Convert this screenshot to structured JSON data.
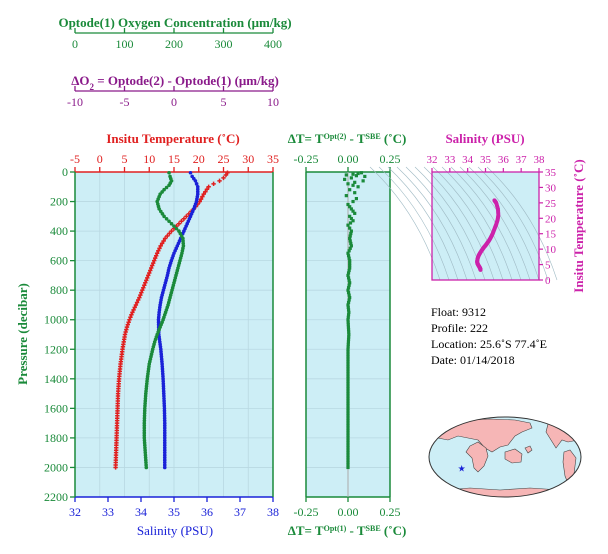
{
  "colors": {
    "green": "#1a8a3a",
    "purple": "#8a1a8a",
    "red": "#e02020",
    "blue": "#1a22d8",
    "magenta": "#cc22aa",
    "panel_bg": "#cdeef6",
    "land": "#f6b6b6"
  },
  "top_axes": {
    "oxygen": {
      "label": "Optode(1) Oxygen Concentration (μm/kg)",
      "ticks": [
        "0",
        "100",
        "200",
        "300",
        "400"
      ]
    },
    "delta_o2": {
      "label_prefix": "ΔO",
      "label_sub": "2",
      "label_suffix": " = Optode(2) - Optode(1)   (μm/kg)",
      "ticks": [
        "-10",
        "-5",
        "0",
        "5",
        "10"
      ]
    }
  },
  "chart_data": [
    {
      "type": "scatter",
      "panel": "profiles",
      "title": "Insitu Temperature (˚C)",
      "xlabel": "Salinity (PSU)",
      "ylabel": "Pressure (decibar)",
      "temp_ticks": [
        "-5",
        "0",
        "5",
        "10",
        "15",
        "20",
        "25",
        "30",
        "35"
      ],
      "temp_range": [
        -5,
        35
      ],
      "sal_ticks": [
        "32",
        "33",
        "34",
        "35",
        "36",
        "37",
        "38"
      ],
      "sal_range": [
        32,
        38
      ],
      "pressure_ticks": [
        "0",
        "200",
        "400",
        "600",
        "800",
        "1000",
        "1200",
        "1400",
        "1600",
        "1800",
        "2000",
        "2200"
      ],
      "pressure_range": [
        0,
        2200
      ],
      "series": [
        {
          "color": "red",
          "axis": "temperature",
          "points": [
            [
              5,
              25.8
            ],
            [
              20,
              25.5
            ],
            [
              40,
              25.0
            ],
            [
              60,
              24.2
            ],
            [
              80,
              23.0
            ],
            [
              100,
              22.0
            ],
            [
              150,
              21.0
            ],
            [
              200,
              20.2
            ],
            [
              250,
              19.0
            ],
            [
              300,
              17.5
            ],
            [
              350,
              16.0
            ],
            [
              400,
              14.5
            ],
            [
              450,
              13.2
            ],
            [
              500,
              12.3
            ],
            [
              550,
              11.6
            ],
            [
              600,
              11.0
            ],
            [
              650,
              10.4
            ],
            [
              700,
              9.8
            ],
            [
              750,
              9.2
            ],
            [
              800,
              8.6
            ],
            [
              850,
              8.0
            ],
            [
              900,
              7.3
            ],
            [
              950,
              6.6
            ],
            [
              1000,
              6.0
            ],
            [
              1050,
              5.5
            ],
            [
              1100,
              5.1
            ],
            [
              1200,
              4.6
            ],
            [
              1300,
              4.2
            ],
            [
              1400,
              3.9
            ],
            [
              1500,
              3.7
            ],
            [
              1600,
              3.6
            ],
            [
              1700,
              3.5
            ],
            [
              1800,
              3.4
            ],
            [
              1900,
              3.3
            ],
            [
              2000,
              3.2
            ]
          ]
        },
        {
          "color": "blue",
          "axis": "salinity",
          "points": [
            [
              5,
              35.5
            ],
            [
              30,
              35.55
            ],
            [
              60,
              35.65
            ],
            [
              100,
              35.72
            ],
            [
              150,
              35.72
            ],
            [
              200,
              35.68
            ],
            [
              250,
              35.6
            ],
            [
              300,
              35.5
            ],
            [
              350,
              35.4
            ],
            [
              400,
              35.3
            ],
            [
              450,
              35.2
            ],
            [
              500,
              35.1
            ],
            [
              550,
              35.0
            ],
            [
              600,
              34.92
            ],
            [
              650,
              34.85
            ],
            [
              700,
              34.8
            ],
            [
              750,
              34.74
            ],
            [
              800,
              34.68
            ],
            [
              850,
              34.62
            ],
            [
              900,
              34.58
            ],
            [
              950,
              34.55
            ],
            [
              1000,
              34.53
            ],
            [
              1100,
              34.54
            ],
            [
              1200,
              34.6
            ],
            [
              1300,
              34.64
            ],
            [
              1400,
              34.67
            ],
            [
              1500,
              34.69
            ],
            [
              1600,
              34.71
            ],
            [
              1700,
              34.72
            ],
            [
              1800,
              34.72
            ],
            [
              1900,
              34.72
            ],
            [
              2000,
              34.72
            ]
          ]
        },
        {
          "color": "green",
          "axis": "oxygen",
          "points": [
            [
              5,
              190
            ],
            [
              30,
              192
            ],
            [
              60,
              195
            ],
            [
              90,
              190
            ],
            [
              120,
              180
            ],
            [
              150,
              172
            ],
            [
              200,
              166
            ],
            [
              250,
              170
            ],
            [
              300,
              180
            ],
            [
              350,
              195
            ],
            [
              400,
              210
            ],
            [
              450,
              218
            ],
            [
              500,
              219
            ],
            [
              550,
              216
            ],
            [
              600,
              212
            ],
            [
              650,
              208
            ],
            [
              700,
              204
            ],
            [
              750,
              200
            ],
            [
              800,
              196
            ],
            [
              850,
              192
            ],
            [
              900,
              188
            ],
            [
              950,
              183
            ],
            [
              1000,
              178
            ],
            [
              1050,
              172
            ],
            [
              1100,
              166
            ],
            [
              1150,
              161
            ],
            [
              1200,
              157
            ],
            [
              1300,
              150
            ],
            [
              1400,
              146
            ],
            [
              1500,
              143
            ],
            [
              1600,
              141
            ],
            [
              1700,
              140
            ],
            [
              1800,
              140
            ],
            [
              1850,
              141
            ],
            [
              1900,
              142
            ],
            [
              1950,
              143
            ],
            [
              2000,
              144
            ]
          ]
        }
      ]
    },
    {
      "type": "scatter",
      "panel": "delta_t",
      "title_prefix": "ΔT= T",
      "title_sup1": "Opt(2)",
      "title_mid": " - T",
      "title_sup2": "SBE",
      "title_suffix": " (˚C)",
      "bottom_prefix": "ΔT= T",
      "bottom_sup1": "Opt(1)",
      "bottom_mid": " - T",
      "bottom_sup2": "SBE",
      "bottom_suffix": " (˚C)",
      "ticks": [
        "-0.25",
        "0.00",
        "0.25"
      ],
      "x_range": [
        -0.25,
        0.25
      ],
      "pressure_range": [
        0,
        2200
      ],
      "series": [
        {
          "color": "green",
          "points": [
            [
              5,
              0.08
            ],
            [
              10,
              0.06
            ],
            [
              15,
              0.03
            ],
            [
              20,
              -0.01
            ],
            [
              25,
              0.05
            ],
            [
              30,
              0.1
            ],
            [
              40,
              0.02
            ],
            [
              50,
              -0.02
            ],
            [
              60,
              0.09
            ],
            [
              70,
              0.04
            ],
            [
              80,
              0.0
            ],
            [
              90,
              0.03
            ],
            [
              100,
              0.06
            ],
            [
              120,
              0.01
            ],
            [
              140,
              0.04
            ],
            [
              160,
              -0.01
            ],
            [
              180,
              0.05
            ],
            [
              200,
              0.03
            ],
            [
              220,
              0.0
            ],
            [
              250,
              0.02
            ],
            [
              280,
              0.04
            ],
            [
              300,
              0.01
            ],
            [
              330,
              0.03
            ],
            [
              360,
              0.0
            ],
            [
              400,
              0.02
            ],
            [
              450,
              0.01
            ],
            [
              500,
              0.02
            ],
            [
              550,
              0.0
            ],
            [
              600,
              0.01
            ],
            [
              650,
              0.01
            ],
            [
              700,
              0.0
            ],
            [
              750,
              0.01
            ],
            [
              800,
              0.0
            ],
            [
              850,
              0.01
            ],
            [
              900,
              0.0
            ],
            [
              950,
              0.005
            ],
            [
              1000,
              0.0
            ],
            [
              1100,
              0.005
            ],
            [
              1200,
              0.0
            ],
            [
              1300,
              0.0
            ],
            [
              1400,
              0.0
            ],
            [
              1500,
              0.0
            ],
            [
              1600,
              0.0
            ],
            [
              1700,
              0.0
            ],
            [
              1800,
              0.0
            ],
            [
              1900,
              0.0
            ],
            [
              2000,
              0.0
            ]
          ]
        }
      ]
    },
    {
      "type": "scatter",
      "panel": "ts",
      "title": "Salinity (PSU)",
      "ylabel": "Insitu Temperature (˚C)",
      "x_ticks": [
        "32",
        "33",
        "34",
        "35",
        "36",
        "37",
        "38"
      ],
      "x_range": [
        32,
        38
      ],
      "y_ticks": [
        "0",
        "5",
        "10",
        "15",
        "20",
        "25",
        "30",
        "35"
      ],
      "y_range": [
        0,
        35
      ],
      "series": [
        {
          "color": "magenta",
          "points": [
            [
              35.5,
              25.8
            ],
            [
              35.6,
              25.0
            ],
            [
              35.7,
              23.0
            ],
            [
              35.72,
              21.0
            ],
            [
              35.68,
              19.5
            ],
            [
              35.6,
              18.0
            ],
            [
              35.5,
              16.5
            ],
            [
              35.4,
              15.0
            ],
            [
              35.3,
              13.8
            ],
            [
              35.2,
              12.8
            ],
            [
              35.1,
              12.0
            ],
            [
              35.0,
              11.2
            ],
            [
              34.9,
              10.5
            ],
            [
              34.8,
              9.7
            ],
            [
              34.7,
              8.8
            ],
            [
              34.62,
              8.0
            ],
            [
              34.56,
              7.0
            ],
            [
              34.53,
              6.0
            ],
            [
              34.55,
              5.3
            ],
            [
              34.6,
              4.8
            ],
            [
              34.65,
              4.3
            ],
            [
              34.69,
              3.9
            ],
            [
              34.71,
              3.6
            ],
            [
              34.72,
              3.3
            ]
          ]
        }
      ]
    }
  ],
  "float_info": {
    "float": "Float:  9312",
    "profile": "Profile:  222",
    "location": "Location:  25.6˚S  77.4˚E",
    "date": "Date:  01/14/2018"
  },
  "map": {
    "marker_lat": -25.6,
    "marker_lon": 77.4
  }
}
